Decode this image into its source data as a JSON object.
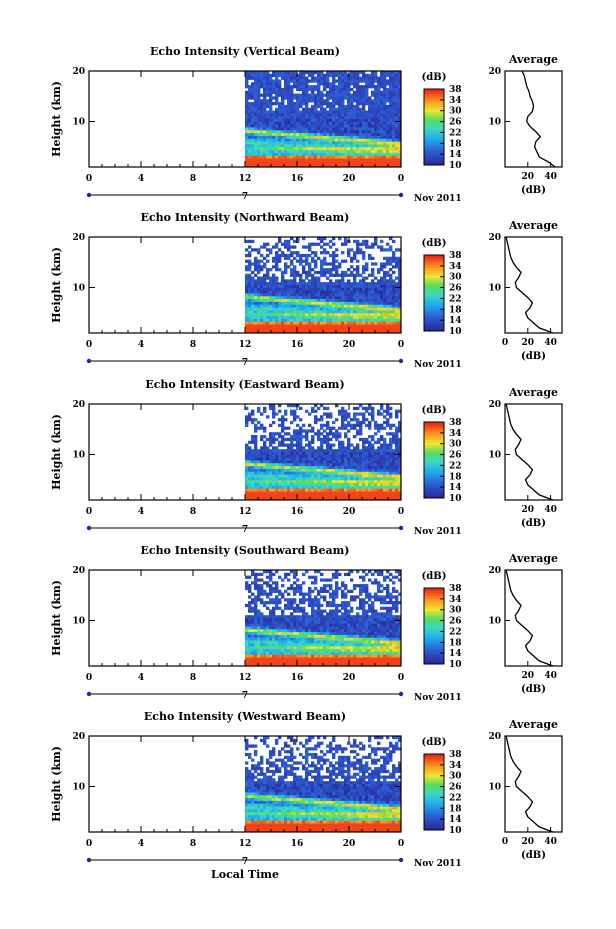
{
  "figure": {
    "xlabel": "Local Time",
    "date_label": "Nov 2011",
    "day_marker": "7",
    "colorbar": {
      "unit": "(dB)",
      "ticks": [
        "10",
        "14",
        "18",
        "22",
        "26",
        "30",
        "34",
        "38"
      ],
      "range": [
        10,
        38
      ]
    },
    "profile": {
      "title": "Average",
      "xlabel": "(dB)"
    }
  },
  "chart_data": [
    {
      "type": "heatmap",
      "title": "Echo Intensity (Vertical Beam)",
      "ylabel": "Height (km)",
      "xlabel": "Local Time",
      "x_ticks": [
        "0",
        "4",
        "8",
        "12",
        "16",
        "20",
        "0"
      ],
      "y_ticks": [
        "20",
        "10"
      ],
      "xlim": [
        0,
        24
      ],
      "ylim": [
        1,
        20
      ],
      "data_start_hour": 12,
      "profile_x_ticks": [
        "20",
        "40"
      ],
      "profile_xlim": [
        0,
        50
      ],
      "profile": {
        "height_km": [
          1,
          2,
          3,
          4,
          5,
          6,
          7,
          8,
          9,
          10,
          11,
          12,
          13,
          14,
          15,
          16,
          17,
          18,
          19,
          20
        ],
        "db": [
          44,
          38,
          30,
          28,
          26,
          27,
          31,
          27,
          22,
          19,
          20,
          24,
          25,
          24,
          22,
          21,
          19,
          18,
          17,
          15
        ]
      }
    },
    {
      "type": "heatmap",
      "title": "Echo Intensity (Northward Beam)",
      "ylabel": "Height (km)",
      "xlabel": "Local Time",
      "x_ticks": [
        "0",
        "4",
        "8",
        "12",
        "16",
        "20",
        "0"
      ],
      "y_ticks": [
        "20",
        "10"
      ],
      "xlim": [
        0,
        24
      ],
      "ylim": [
        1,
        20
      ],
      "data_start_hour": 12,
      "profile_x_ticks": [
        "0",
        "20",
        "40"
      ],
      "profile_xlim": [
        0,
        50
      ],
      "profile": {
        "height_km": [
          1,
          2,
          3,
          4,
          5,
          6,
          7,
          8,
          9,
          10,
          11,
          12,
          13,
          14,
          15,
          16,
          17,
          18,
          19,
          20
        ],
        "db": [
          42,
          30,
          25,
          20,
          18,
          22,
          24,
          20,
          15,
          10,
          9,
          12,
          14,
          10,
          7,
          5,
          4,
          3,
          2,
          1
        ]
      }
    },
    {
      "type": "heatmap",
      "title": "Echo Intensity (Eastward Beam)",
      "ylabel": "Height (km)",
      "xlabel": "Local Time",
      "x_ticks": [
        "0",
        "4",
        "8",
        "12",
        "16",
        "20",
        "0"
      ],
      "y_ticks": [
        "20",
        "10"
      ],
      "xlim": [
        0,
        24
      ],
      "ylim": [
        1,
        20
      ],
      "data_start_hour": 12,
      "profile_x_ticks": [
        "20",
        "40"
      ],
      "profile_xlim": [
        0,
        50
      ],
      "profile": {
        "height_km": [
          1,
          2,
          3,
          4,
          5,
          6,
          7,
          8,
          9,
          10,
          11,
          12,
          13,
          14,
          15,
          16,
          17,
          18,
          19,
          20
        ],
        "db": [
          42,
          30,
          25,
          20,
          18,
          22,
          24,
          20,
          15,
          10,
          9,
          12,
          14,
          10,
          7,
          5,
          4,
          3,
          2,
          1
        ]
      }
    },
    {
      "type": "heatmap",
      "title": "Echo Intensity (Southward Beam)",
      "ylabel": "Height (km)",
      "xlabel": "Local Time",
      "x_ticks": [
        "0",
        "4",
        "8",
        "12",
        "16",
        "20",
        "0"
      ],
      "y_ticks": [
        "20",
        "10"
      ],
      "xlim": [
        0,
        24
      ],
      "ylim": [
        1,
        20
      ],
      "data_start_hour": 12,
      "profile_x_ticks": [
        "20",
        "40"
      ],
      "profile_xlim": [
        0,
        50
      ],
      "profile": {
        "height_km": [
          1,
          2,
          3,
          4,
          5,
          6,
          7,
          8,
          9,
          10,
          11,
          12,
          13,
          14,
          15,
          16,
          17,
          18,
          19,
          20
        ],
        "db": [
          42,
          30,
          25,
          20,
          18,
          22,
          24,
          20,
          15,
          10,
          9,
          12,
          14,
          10,
          7,
          5,
          4,
          3,
          2,
          1
        ]
      }
    },
    {
      "type": "heatmap",
      "title": "Echo Intensity (Westward Beam)",
      "ylabel": "Height (km)",
      "xlabel": "Local Time",
      "x_ticks": [
        "0",
        "4",
        "8",
        "12",
        "16",
        "20",
        "0"
      ],
      "y_ticks": [
        "20",
        "10"
      ],
      "xlim": [
        0,
        24
      ],
      "ylim": [
        1,
        20
      ],
      "data_start_hour": 12,
      "profile_x_ticks": [
        "0",
        "20",
        "40"
      ],
      "profile_xlim": [
        0,
        50
      ],
      "profile": {
        "height_km": [
          1,
          2,
          3,
          4,
          5,
          6,
          7,
          8,
          9,
          10,
          11,
          12,
          13,
          14,
          15,
          16,
          17,
          18,
          19,
          20
        ],
        "db": [
          42,
          30,
          25,
          20,
          18,
          22,
          24,
          20,
          15,
          10,
          9,
          12,
          14,
          10,
          7,
          5,
          4,
          3,
          2,
          1
        ]
      }
    }
  ]
}
